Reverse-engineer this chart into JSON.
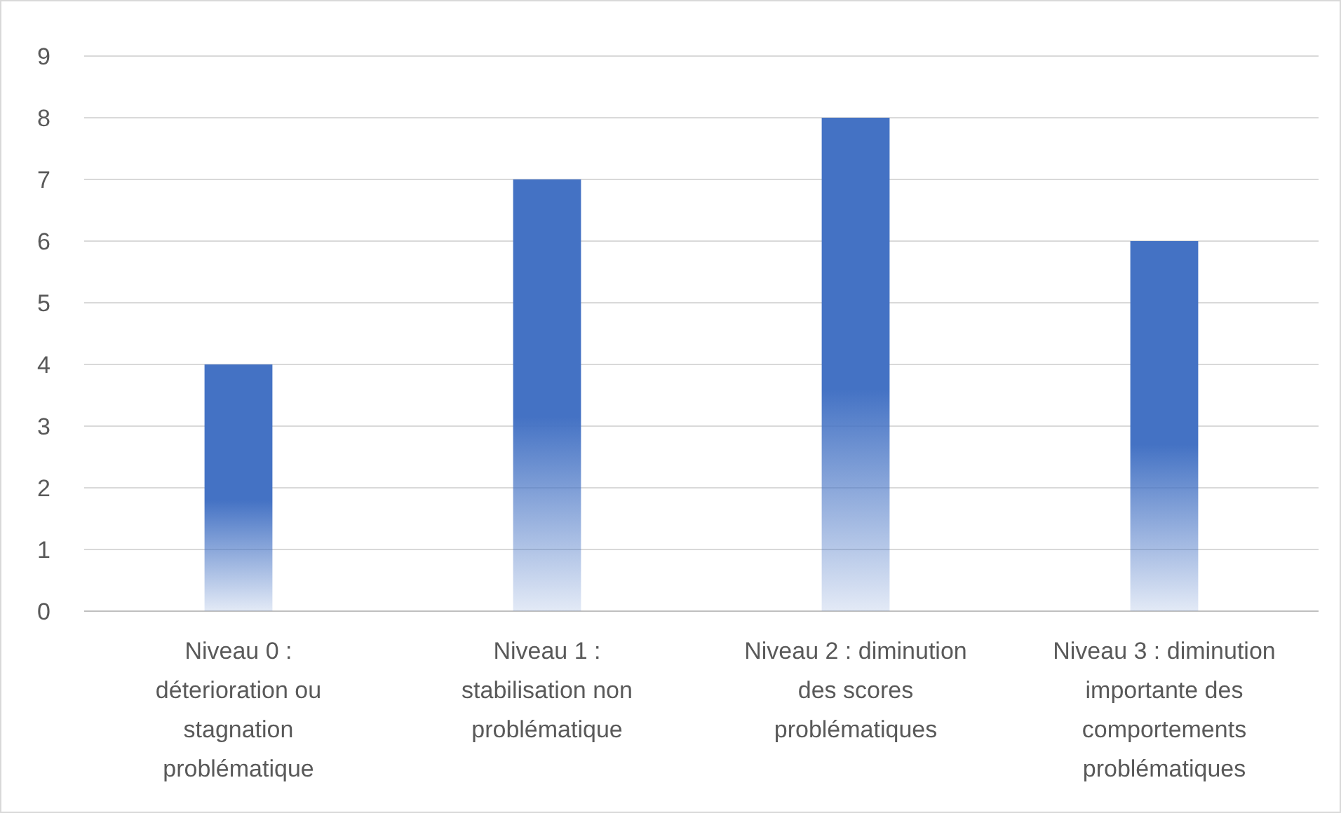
{
  "chart_data": {
    "type": "bar",
    "categories": [
      "Niveau 0 : déterioration ou stagnation problématique",
      "Niveau 1 : stabilisation non problématique",
      "Niveau 2 : diminution des scores problématiques",
      "Niveau 3 : diminution importante des comportements problématiques"
    ],
    "values": [
      4,
      7,
      8,
      6
    ],
    "color": "#4472c4",
    "ylim": [
      0,
      9
    ],
    "yticks": [
      0,
      1,
      2,
      3,
      4,
      5,
      6,
      7,
      8,
      9
    ],
    "grid": "y"
  }
}
